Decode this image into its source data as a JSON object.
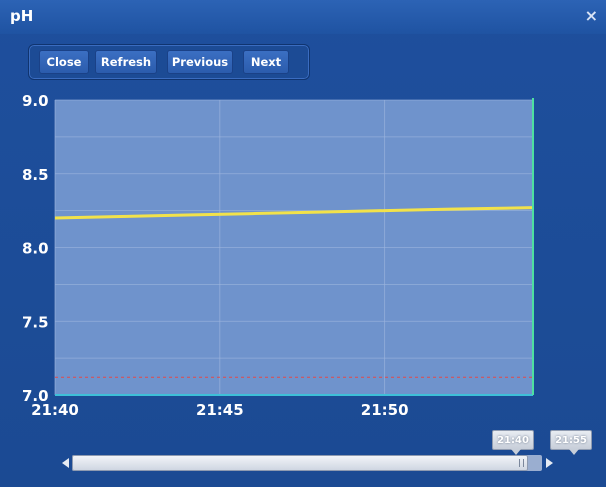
{
  "window": {
    "title": "pH",
    "close_glyph": "×"
  },
  "toolbar": {
    "buttons": [
      {
        "label": "Close"
      },
      {
        "label": "Refresh"
      },
      {
        "label": "Previous"
      },
      {
        "label": "Next"
      }
    ]
  },
  "chart_data": {
    "type": "line",
    "title": "",
    "xlabel": "",
    "ylabel": "",
    "x_ticks": [
      "21:40",
      "21:45",
      "21:50"
    ],
    "y_ticks": [
      "9.0",
      "8.5",
      "8.0",
      "7.5",
      "7.0"
    ],
    "ylim": [
      7.0,
      9.0
    ],
    "xlim": [
      "21:40",
      "21:54:30"
    ],
    "grid": true,
    "series": [
      {
        "color": "#f2e24a",
        "x": [
          "21:40",
          "21:42",
          "21:44",
          "21:46",
          "21:48",
          "21:50",
          "21:52",
          "21:54:30"
        ],
        "values": [
          8.2,
          8.21,
          8.22,
          8.23,
          8.24,
          8.25,
          8.26,
          8.27
        ]
      }
    ],
    "reference_lines": [
      {
        "axis": "y",
        "value": 7.12,
        "color": "#e24a4a",
        "style": "dashed"
      }
    ],
    "cursor_line": {
      "x": "21:54:30",
      "color": "#4ee0a0"
    },
    "colors": {
      "plot_bg": "#6f93cc",
      "grid": "#9db5de",
      "axis_text": "#ffffff"
    }
  },
  "range_selector": {
    "start_label": "21:40",
    "end_label": "21:55",
    "thumb_fraction": 0.97
  }
}
